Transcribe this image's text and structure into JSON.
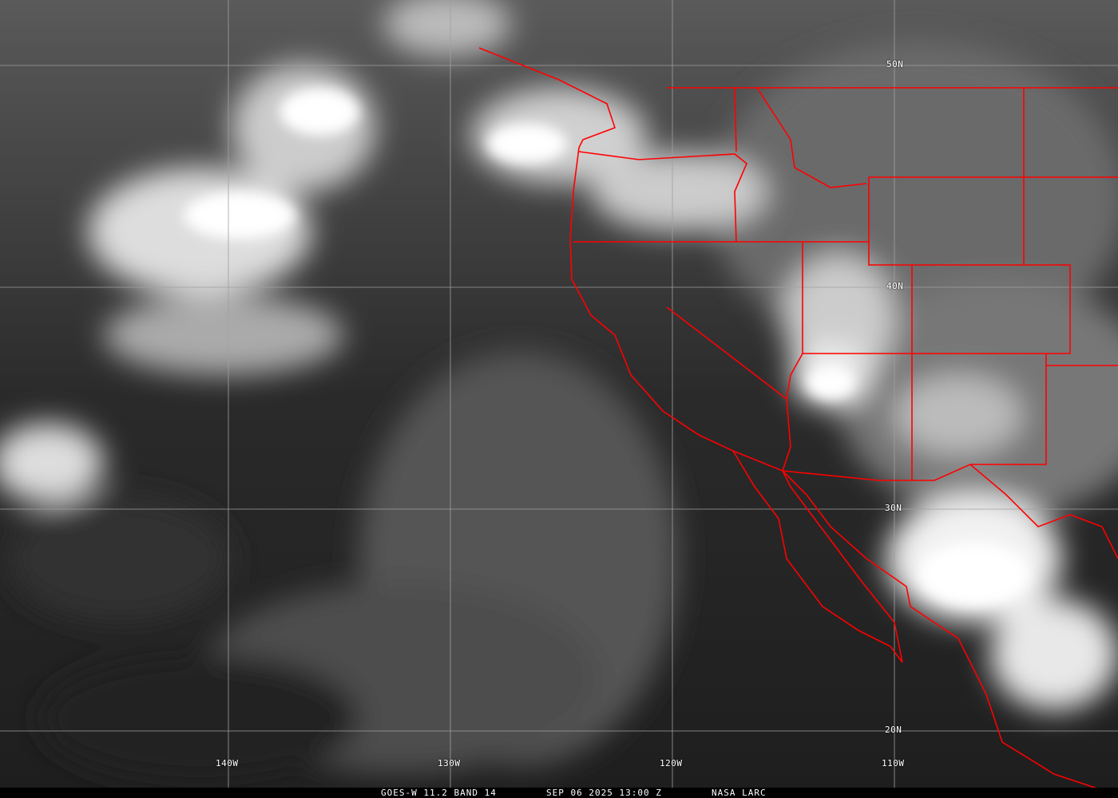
{
  "caption": {
    "satellite_band": "GOES-W 11.2 BAND 14",
    "datetime": "SEP 06 2025 13:00 Z",
    "source": "NASA LARC"
  },
  "grid": {
    "latitudes": [
      "50N",
      "40N",
      "30N",
      "20N"
    ],
    "longitudes": [
      "140W",
      "130W",
      "120W",
      "110W"
    ]
  },
  "colors": {
    "borders": "#ff0000",
    "grid": "#a0a0a0",
    "caption_bg": "#000000"
  }
}
